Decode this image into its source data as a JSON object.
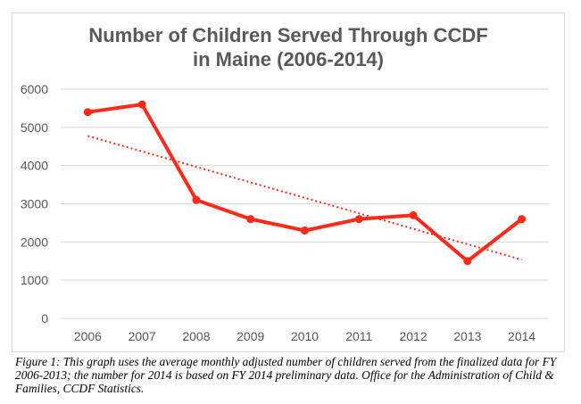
{
  "chart_data": {
    "type": "line",
    "title_line1": "Number of Children Served Through CCDF",
    "title_line2": "in Maine (2006-2014)",
    "categories": [
      "2006",
      "2007",
      "2008",
      "2009",
      "2010",
      "2011",
      "2012",
      "2013",
      "2014"
    ],
    "series": [
      {
        "values": [
          5400,
          5600,
          3100,
          2600,
          2300,
          2600,
          2700,
          1500,
          2600
        ],
        "color": "#ff2a1a"
      }
    ],
    "trendline": {
      "type": "linear",
      "style": "dotted",
      "color": "#ff2a1a"
    },
    "ylim": [
      0,
      6000
    ],
    "yticks": [
      0,
      1000,
      2000,
      3000,
      4000,
      5000,
      6000
    ],
    "grid": true,
    "legend": "none"
  },
  "caption": "Figure 1: This graph uses the average monthly adjusted number of children served from the finalized data for FY 2006-2013; the number for 2014 is based on FY 2014 preliminary data. Office for the Administration of Child & Families, CCDF Statistics."
}
